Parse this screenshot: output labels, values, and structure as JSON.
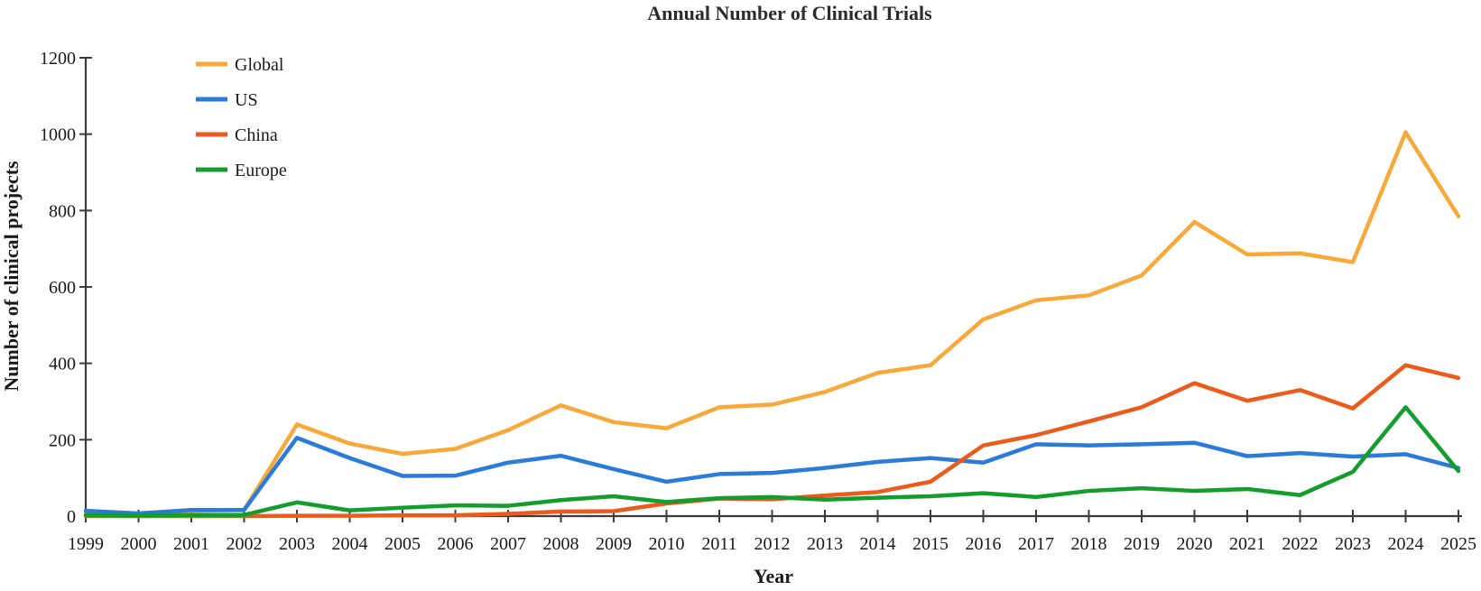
{
  "title": "Annual Number of Clinical Trials",
  "axes": {
    "x_label": "Year",
    "y_label": "Number of clinical projects",
    "y_ticks": [
      0,
      200,
      400,
      600,
      800,
      1000,
      1200
    ],
    "axis_color": "#3c3c3c",
    "text_color": "#1a1a1a"
  },
  "chart_data": {
    "type": "line",
    "title": "Annual Number of Clinical Trials",
    "xlabel": "Year",
    "ylabel": "Number of clinical projects",
    "ylim": [
      0,
      1200
    ],
    "grid": false,
    "legend_position": "top-left",
    "x": [
      1999,
      2000,
      2001,
      2002,
      2003,
      2004,
      2005,
      2006,
      2007,
      2008,
      2009,
      2010,
      2011,
      2012,
      2013,
      2014,
      2015,
      2016,
      2017,
      2018,
      2019,
      2020,
      2021,
      2022,
      2023,
      2024,
      2025
    ],
    "series": [
      {
        "name": "Global",
        "color": "#F8A93B",
        "values": [
          12,
          6,
          14,
          16,
          240,
          190,
          163,
          176,
          225,
          290,
          246,
          230,
          285,
          292,
          325,
          375,
          395,
          515,
          565,
          578,
          630,
          770,
          685,
          688,
          665,
          1005,
          785
        ]
      },
      {
        "name": "US",
        "color": "#2C7BD9",
        "values": [
          14,
          7,
          16,
          16,
          205,
          152,
          105,
          106,
          140,
          158,
          123,
          90,
          110,
          113,
          126,
          142,
          152,
          140,
          188,
          185,
          188,
          192,
          157,
          165,
          156,
          162,
          126
        ]
      },
      {
        "name": "China",
        "color": "#EA5B1E",
        "values": [
          0,
          0,
          0,
          0,
          1,
          1,
          2,
          2,
          6,
          12,
          13,
          33,
          46,
          44,
          54,
          63,
          90,
          185,
          212,
          248,
          285,
          348,
          302,
          330,
          282,
          395,
          362
        ]
      },
      {
        "name": "Europe",
        "color": "#149C2D",
        "values": [
          3,
          2,
          3,
          3,
          36,
          15,
          22,
          28,
          27,
          42,
          52,
          37,
          47,
          50,
          43,
          48,
          52,
          60,
          50,
          66,
          73,
          66,
          71,
          55,
          116,
          285,
          118
        ]
      }
    ]
  }
}
